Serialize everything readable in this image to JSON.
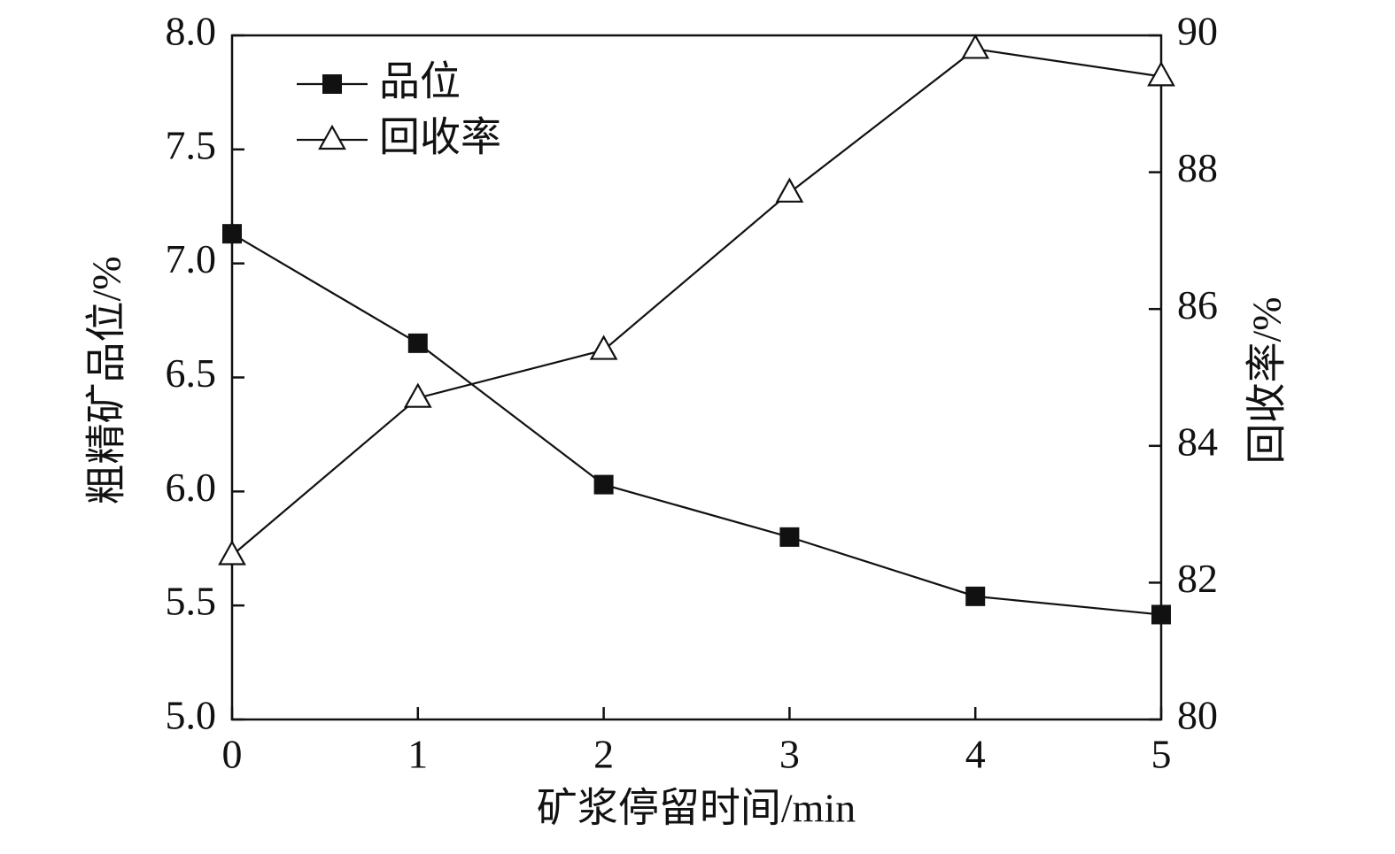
{
  "chart_data": {
    "type": "line",
    "x_label": "矿浆停留时间/min",
    "y_label": "粗精矿品位/%",
    "y2_label": "回收率/%",
    "x": [
      0,
      1,
      2,
      3,
      4,
      5
    ],
    "xlim": [
      0,
      5
    ],
    "xticks": [
      0,
      1,
      2,
      3,
      4,
      5
    ],
    "ylim": [
      5,
      8
    ],
    "yticks": [
      {
        "value": 5,
        "label": "5.0"
      },
      5.5,
      {
        "value": 6,
        "label": "6.0"
      },
      6.5,
      {
        "value": 7,
        "label": "7.0"
      },
      7.5,
      {
        "value": 8,
        "label": "8.0"
      }
    ],
    "y2lim": [
      80,
      90
    ],
    "y2ticks": [
      80,
      82,
      84,
      86,
      88,
      90
    ],
    "legend": "upper left",
    "series": [
      {
        "name": "品位",
        "color": "#111111",
        "marker": "square",
        "values": [
          7.13,
          6.65,
          6.03,
          5.8,
          5.54,
          5.46
        ]
      },
      {
        "name": "回收率",
        "color": "#111111",
        "marker": "triangle",
        "axis": "y2",
        "values": [
          82.4,
          84.7,
          85.4,
          87.7,
          89.8,
          89.4
        ]
      }
    ]
  }
}
